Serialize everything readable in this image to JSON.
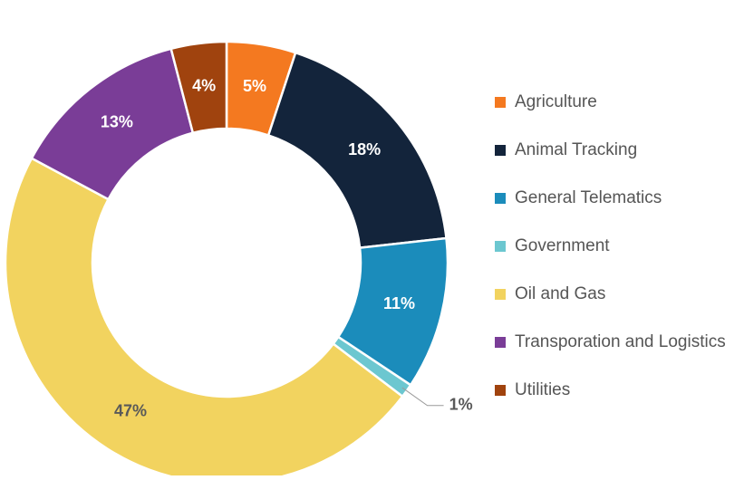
{
  "chart_data": {
    "type": "pie",
    "donut": true,
    "categories": [
      "Agriculture",
      "Animal Tracking",
      "General Telematics",
      "Government",
      "Oil and Gas",
      "Transporation and Logistics",
      "Utilities"
    ],
    "values": [
      5,
      18,
      11,
      1,
      47,
      13,
      4
    ],
    "value_labels": [
      "5%",
      "18%",
      "11%",
      "1%",
      "47%",
      "13%",
      "4%"
    ],
    "colors": [
      "#F47920",
      "#13243B",
      "#1B8CBB",
      "#6CC7D0",
      "#F2D35F",
      "#7A3D97",
      "#A0430E"
    ],
    "label_colors": [
      "#FFFFFF",
      "#FFFFFF",
      "#FFFFFF",
      "#595959",
      "#595959",
      "#FFFFFF",
      "#FFFFFF"
    ],
    "legend_position": "right",
    "start_angle_deg": 0,
    "direction": "clockwise"
  }
}
